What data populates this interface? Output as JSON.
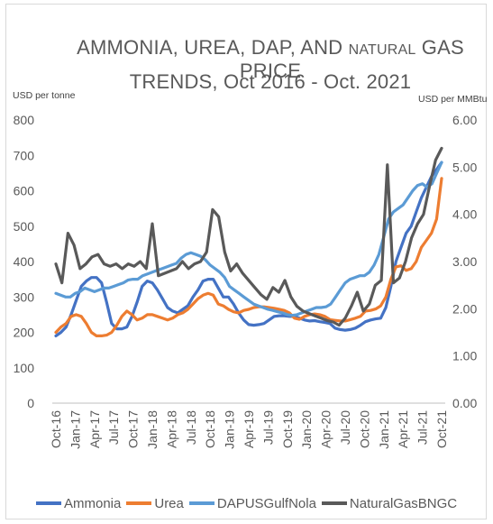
{
  "chart_data": {
    "type": "line",
    "title_line1_a": "AMMONIA, UREA, DAP, AND ",
    "title_line1_b": "NATURAL",
    "title_line1_c": " GAS PRICE",
    "title_line2": "TRENDS, Oct 2016 - Oct. 2021",
    "y_left_label": "USD per tonne",
    "y_right_label": "USD per MMBtu",
    "y_left_ticks": [
      "800",
      "700",
      "600",
      "500",
      "400",
      "300",
      "200",
      "100",
      "0"
    ],
    "y_right_ticks": [
      "6.00",
      "5.00",
      "4.00",
      "3.00",
      "2.00",
      "1.00",
      "0.00"
    ],
    "ylim_left": [
      0,
      800
    ],
    "ylim_right": [
      0,
      6
    ],
    "x_ticks": [
      "Oct-16",
      "Jan-17",
      "Apr-17",
      "Jul-17",
      "Oct-17",
      "Jan-18",
      "Apr-18",
      "Jul-18",
      "Oct-18",
      "Jan-19",
      "Apr-19",
      "Jul-19",
      "Oct-19",
      "Jan-20",
      "Apr-20",
      "Jul-20",
      "Oct-20",
      "Jan-21",
      "Apr-21",
      "Jul-21",
      "Oct-21"
    ],
    "grid": false,
    "legend_position": "bottom",
    "series": [
      {
        "name": "Ammonia",
        "axis": "left",
        "color": "#4472C4",
        "values": [
          190,
          200,
          215,
          250,
          290,
          330,
          345,
          355,
          355,
          340,
          285,
          225,
          210,
          210,
          215,
          245,
          285,
          330,
          345,
          340,
          320,
          295,
          270,
          260,
          255,
          265,
          275,
          300,
          320,
          345,
          350,
          350,
          325,
          300,
          300,
          280,
          255,
          235,
          222,
          220,
          222,
          225,
          235,
          245,
          247,
          247,
          245,
          245,
          240,
          235,
          232,
          233,
          230,
          228,
          225,
          212,
          208,
          206,
          208,
          212,
          220,
          230,
          235,
          238,
          240,
          270,
          330,
          400,
          440,
          480,
          500,
          540,
          580,
          610,
          640,
          660,
          680
        ]
      },
      {
        "name": "Urea",
        "axis": "left",
        "color": "#ED7D31",
        "values": [
          200,
          215,
          225,
          245,
          250,
          245,
          225,
          200,
          190,
          190,
          192,
          200,
          220,
          245,
          260,
          250,
          235,
          240,
          250,
          250,
          245,
          240,
          235,
          240,
          250,
          255,
          265,
          280,
          295,
          305,
          310,
          305,
          280,
          275,
          265,
          258,
          255,
          262,
          265,
          270,
          272,
          272,
          270,
          268,
          265,
          262,
          255,
          240,
          237,
          245,
          250,
          252,
          250,
          245,
          236,
          234,
          232,
          232,
          236,
          240,
          245,
          260,
          262,
          266,
          275,
          300,
          350,
          385,
          388,
          375,
          380,
          400,
          440,
          460,
          480,
          520,
          635
        ]
      },
      {
        "name": "DAPUSGulfNola",
        "axis": "left",
        "color": "#5B9BD5",
        "values": [
          310,
          305,
          300,
          300,
          310,
          315,
          325,
          320,
          315,
          320,
          325,
          325,
          330,
          335,
          340,
          348,
          350,
          350,
          360,
          365,
          370,
          375,
          380,
          385,
          390,
          395,
          410,
          420,
          425,
          420,
          415,
          405,
          390,
          380,
          370,
          355,
          330,
          320,
          310,
          300,
          290,
          280,
          275,
          270,
          265,
          262,
          258,
          255,
          250,
          248,
          250,
          255,
          260,
          265,
          270,
          270,
          272,
          280,
          300,
          320,
          340,
          350,
          355,
          360,
          360,
          370,
          390,
          420,
          470,
          520,
          540,
          550,
          560,
          580,
          600,
          615,
          620,
          610,
          620,
          650,
          680
        ]
      },
      {
        "name": "NaturalGasBNGC",
        "axis": "right",
        "color": "#595959",
        "values": [
          2.95,
          2.55,
          3.6,
          3.35,
          2.85,
          2.95,
          3.1,
          3.15,
          2.95,
          2.9,
          2.95,
          2.85,
          2.95,
          2.9,
          3.0,
          2.85,
          3.8,
          2.7,
          2.75,
          2.8,
          2.85,
          3.0,
          2.85,
          2.95,
          3.0,
          3.2,
          4.1,
          3.95,
          3.2,
          2.8,
          2.95,
          2.75,
          2.6,
          2.45,
          2.3,
          2.2,
          2.45,
          2.35,
          2.6,
          2.25,
          2.05,
          1.95,
          1.9,
          1.85,
          1.8,
          1.75,
          1.72,
          1.65,
          1.8,
          2.05,
          2.35,
          1.95,
          2.1,
          2.5,
          2.6,
          5.05,
          2.55,
          2.65,
          3.0,
          3.5,
          3.8,
          4.0,
          4.6,
          5.15,
          5.4
        ]
      }
    ]
  }
}
